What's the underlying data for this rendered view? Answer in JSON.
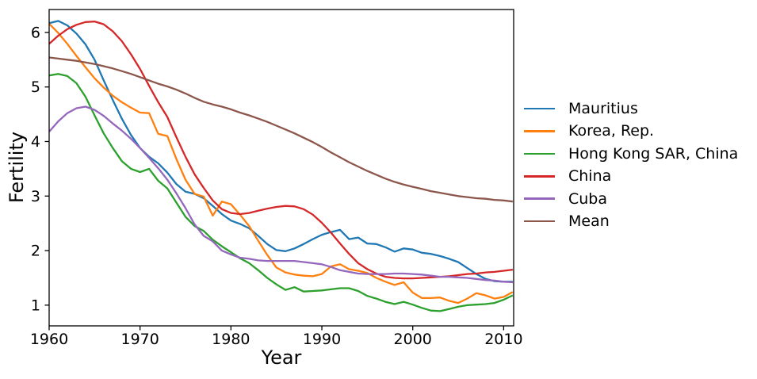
{
  "chart_data": {
    "type": "line",
    "title": "",
    "xlabel": "Year",
    "ylabel": "Fertility",
    "xlim": [
      1960,
      2011.1
    ],
    "ylim": [
      0.62,
      6.42
    ],
    "xticks": [
      1960,
      1970,
      1980,
      1990,
      2000,
      2010
    ],
    "yticks": [
      1,
      2,
      3,
      4,
      5,
      6
    ],
    "grid": false,
    "legend_position": "right of plot, no frame",
    "x": [
      1960,
      1961,
      1962,
      1963,
      1964,
      1965,
      1966,
      1967,
      1968,
      1969,
      1970,
      1971,
      1972,
      1973,
      1974,
      1975,
      1976,
      1977,
      1978,
      1979,
      1980,
      1981,
      1982,
      1983,
      1984,
      1985,
      1986,
      1987,
      1988,
      1989,
      1990,
      1991,
      1992,
      1993,
      1994,
      1995,
      1996,
      1997,
      1998,
      1999,
      2000,
      2001,
      2002,
      2003,
      2004,
      2005,
      2006,
      2007,
      2008,
      2009,
      2010,
      2011
    ],
    "series": [
      {
        "name": "Mauritius",
        "color": "#1f77b4",
        "values": [
          6.17,
          6.21,
          6.13,
          5.98,
          5.78,
          5.5,
          5.12,
          4.76,
          4.42,
          4.12,
          3.88,
          3.72,
          3.6,
          3.43,
          3.22,
          3.08,
          3.04,
          2.96,
          2.82,
          2.67,
          2.55,
          2.49,
          2.41,
          2.27,
          2.12,
          2.01,
          1.99,
          2.04,
          2.12,
          2.21,
          2.29,
          2.34,
          2.38,
          2.21,
          2.24,
          2.13,
          2.12,
          2.06,
          1.98,
          2.04,
          2.02,
          1.96,
          1.94,
          1.9,
          1.85,
          1.79,
          1.68,
          1.57,
          1.48,
          1.44,
          1.43,
          1.43
        ]
      },
      {
        "name": "Korea, Rep.",
        "color": "#ff7f0e",
        "values": [
          6.16,
          5.99,
          5.79,
          5.57,
          5.36,
          5.16,
          4.99,
          4.84,
          4.72,
          4.62,
          4.53,
          4.52,
          4.14,
          4.1,
          3.68,
          3.3,
          3.04,
          2.99,
          2.64,
          2.9,
          2.85,
          2.66,
          2.45,
          2.18,
          1.92,
          1.69,
          1.6,
          1.56,
          1.54,
          1.53,
          1.57,
          1.71,
          1.75,
          1.66,
          1.63,
          1.59,
          1.5,
          1.43,
          1.37,
          1.42,
          1.23,
          1.13,
          1.13,
          1.14,
          1.08,
          1.04,
          1.12,
          1.22,
          1.18,
          1.12,
          1.15,
          1.24
        ]
      },
      {
        "name": "Hong Kong SAR, China",
        "color": "#2ca02c",
        "values": [
          5.21,
          5.24,
          5.2,
          5.07,
          4.82,
          4.48,
          4.15,
          3.88,
          3.64,
          3.5,
          3.44,
          3.5,
          3.28,
          3.14,
          2.88,
          2.62,
          2.45,
          2.36,
          2.2,
          2.08,
          1.97,
          1.86,
          1.77,
          1.64,
          1.5,
          1.38,
          1.28,
          1.33,
          1.25,
          1.26,
          1.27,
          1.29,
          1.31,
          1.31,
          1.26,
          1.17,
          1.12,
          1.06,
          1.02,
          1.06,
          1.01,
          0.95,
          0.9,
          0.89,
          0.93,
          0.97,
          1.0,
          1.01,
          1.02,
          1.04,
          1.1,
          1.18
        ]
      },
      {
        "name": "China",
        "color": "#d62728",
        "values": [
          5.79,
          5.94,
          6.06,
          6.14,
          6.19,
          6.2,
          6.15,
          6.02,
          5.84,
          5.6,
          5.33,
          5.02,
          4.72,
          4.45,
          4.08,
          3.72,
          3.4,
          3.15,
          2.92,
          2.76,
          2.69,
          2.67,
          2.69,
          2.73,
          2.77,
          2.8,
          2.82,
          2.81,
          2.76,
          2.66,
          2.51,
          2.33,
          2.13,
          1.94,
          1.77,
          1.66,
          1.58,
          1.52,
          1.5,
          1.49,
          1.49,
          1.5,
          1.51,
          1.52,
          1.53,
          1.55,
          1.57,
          1.58,
          1.6,
          1.61,
          1.63,
          1.65
        ]
      },
      {
        "name": "Cuba",
        "color": "#9467bd",
        "values": [
          4.18,
          4.37,
          4.52,
          4.61,
          4.64,
          4.58,
          4.47,
          4.33,
          4.2,
          4.05,
          3.88,
          3.7,
          3.51,
          3.3,
          3.05,
          2.78,
          2.48,
          2.27,
          2.17,
          2.0,
          1.93,
          1.87,
          1.85,
          1.82,
          1.81,
          1.81,
          1.81,
          1.81,
          1.79,
          1.77,
          1.75,
          1.7,
          1.64,
          1.61,
          1.58,
          1.57,
          1.57,
          1.57,
          1.58,
          1.58,
          1.57,
          1.56,
          1.54,
          1.52,
          1.52,
          1.51,
          1.5,
          1.48,
          1.46,
          1.45,
          1.43,
          1.42
        ]
      },
      {
        "name": "Mean",
        "color": "#8c564b",
        "values": [
          5.54,
          5.52,
          5.5,
          5.48,
          5.45,
          5.42,
          5.38,
          5.34,
          5.29,
          5.24,
          5.18,
          5.12,
          5.06,
          5.01,
          4.95,
          4.88,
          4.8,
          4.73,
          4.68,
          4.64,
          4.59,
          4.53,
          4.48,
          4.42,
          4.36,
          4.29,
          4.22,
          4.15,
          4.07,
          3.99,
          3.9,
          3.8,
          3.71,
          3.62,
          3.54,
          3.46,
          3.39,
          3.32,
          3.26,
          3.21,
          3.17,
          3.13,
          3.09,
          3.06,
          3.03,
          3.0,
          2.98,
          2.96,
          2.95,
          2.93,
          2.92,
          2.9
        ]
      }
    ]
  }
}
